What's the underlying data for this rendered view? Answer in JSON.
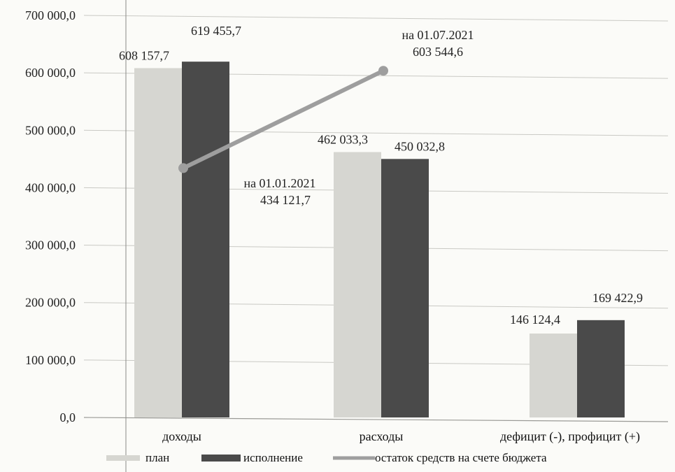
{
  "chart_data": {
    "type": "bar",
    "title": "",
    "xlabel": "",
    "ylabel": "",
    "ylim": [
      0,
      700000
    ],
    "y_ticks": [
      "0,0",
      "100 000,0",
      "200 000,0",
      "300 000,0",
      "400 000,0",
      "500 000,0",
      "600 000,0",
      "700 000,0"
    ],
    "y_tick_values": [
      0,
      100000,
      200000,
      300000,
      400000,
      500000,
      600000,
      700000
    ],
    "grid": true,
    "categories": [
      "доходы",
      "расходы",
      "дефицит (-), профицит (+)"
    ],
    "series": [
      {
        "name": "план",
        "color": "#d6d6d1",
        "values": [
          608157.7,
          462033.3,
          146124.4
        ],
        "labels": [
          "608 157,7",
          "462 033,3",
          "146 124,4"
        ]
      },
      {
        "name": "исполнение",
        "color": "#4a4a4a",
        "values": [
          619455.7,
          450032.8,
          169422.9
        ],
        "labels": [
          "619 455,7",
          "450 032,8",
          "169 422,9"
        ]
      }
    ],
    "line_series": {
      "name": "остаток средств на счете бюджета",
      "color": "#9e9e9e",
      "points": [
        {
          "label_date": "на 01.01.2021",
          "value": 434121.7,
          "label_value": "434 121,7"
        },
        {
          "label_date": "на 01.07.2021",
          "value": 603544.6,
          "label_value": "603 544,6"
        }
      ]
    },
    "legend_position": "bottom"
  }
}
